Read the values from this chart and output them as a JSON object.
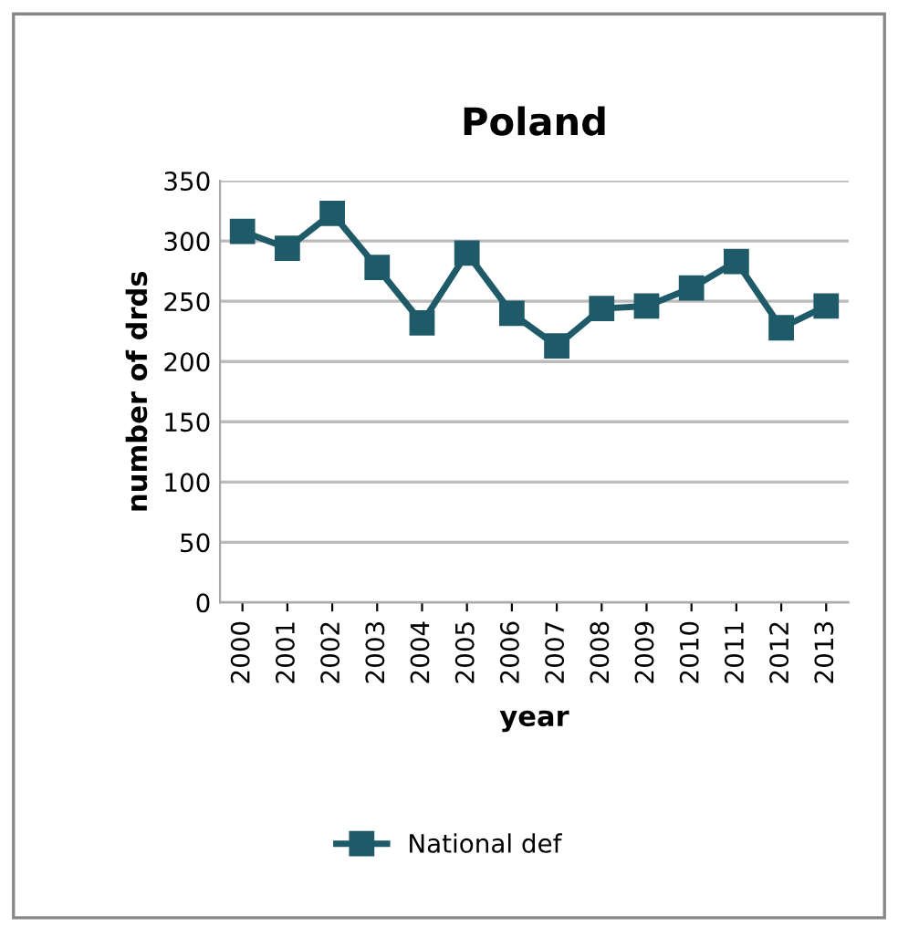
{
  "chart_data": {
    "type": "line",
    "title": "Poland",
    "xlabel": "year",
    "ylabel": "number of drds",
    "categories": [
      "2000",
      "2001",
      "2002",
      "2003",
      "2004",
      "2005",
      "2006",
      "2007",
      "2008",
      "2009",
      "2010",
      "2011",
      "2012",
      "2013"
    ],
    "series": [
      {
        "name": "National def",
        "color": "#1e5a68",
        "values": [
          308,
          294,
          323,
          278,
          232,
          290,
          240,
          213,
          244,
          246,
          261,
          283,
          228,
          246
        ]
      }
    ],
    "ylim": [
      0,
      350
    ],
    "yticks": [
      0,
      50,
      100,
      150,
      200,
      250,
      300,
      350
    ],
    "grid": "y",
    "legend": "bottom",
    "marker": "square",
    "line_style": "solid"
  }
}
